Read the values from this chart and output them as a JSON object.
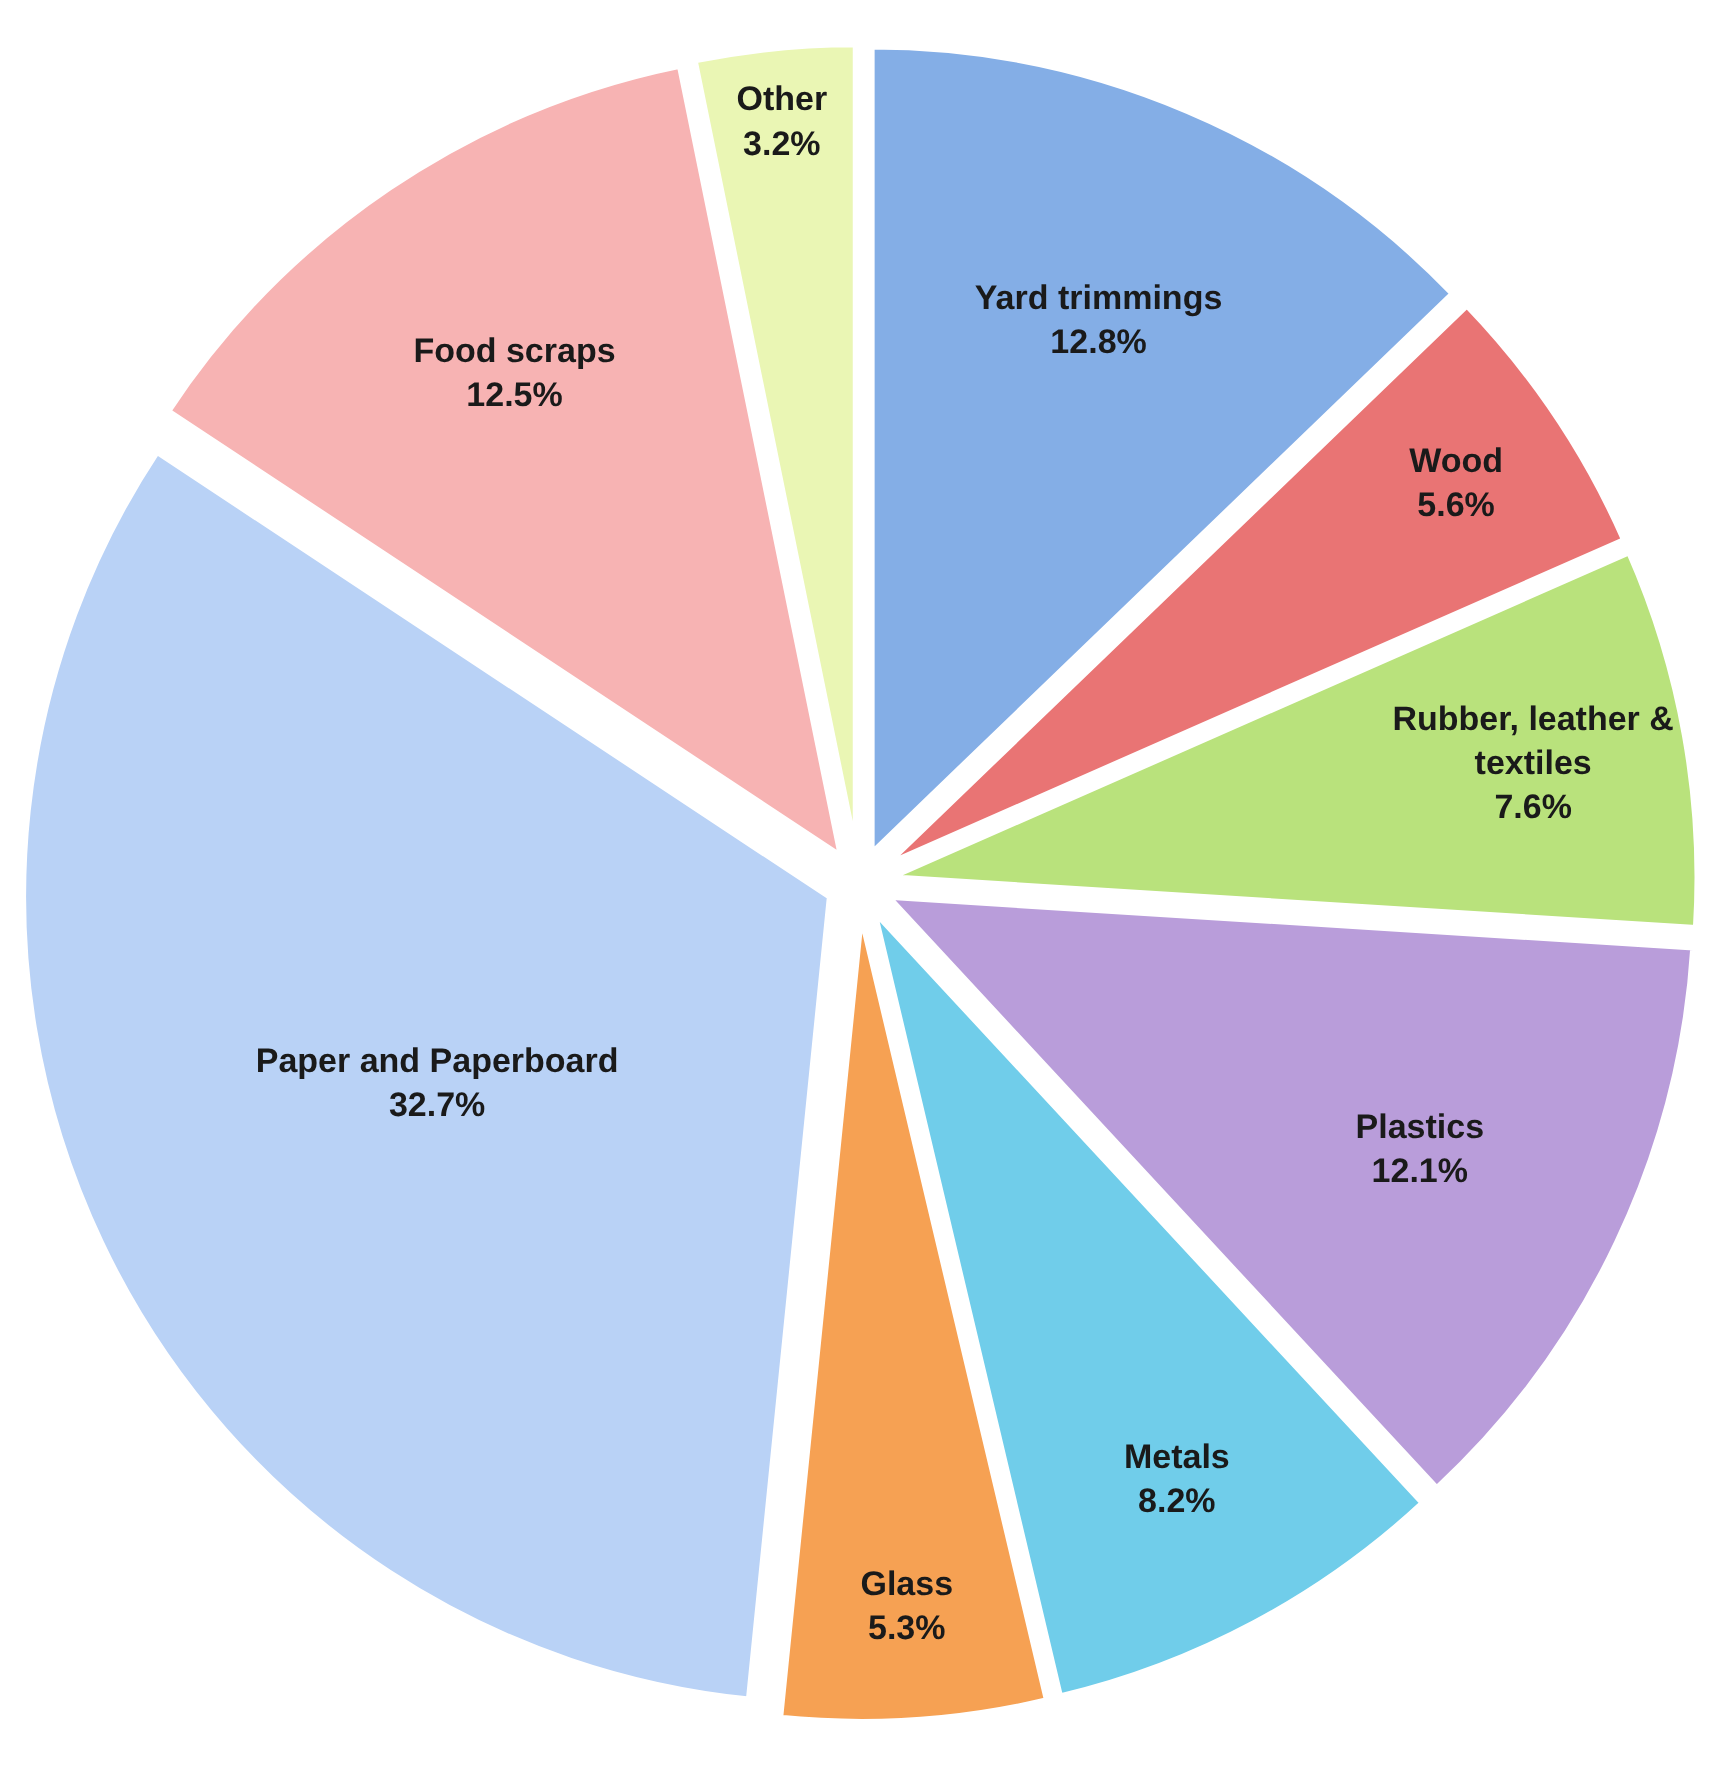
{
  "chart_data": {
    "type": "pie",
    "categories": [
      "Yard trimmings",
      "Wood",
      "Rubber, leather & textiles",
      "Plastics",
      "Metals",
      "Glass",
      "Paper and Paperboard",
      "Food scraps",
      "Other"
    ],
    "values": [
      12.8,
      5.6,
      7.6,
      12.1,
      8.2,
      5.3,
      32.7,
      12.5,
      3.2
    ],
    "value_labels": [
      "12.8%",
      "5.6%",
      "7.6%",
      "12.1%",
      "8.2%",
      "5.3%",
      "32.7%",
      "12.5%",
      "3.2%"
    ],
    "colors": [
      "#84aee6",
      "#e97474",
      "#b9e27c",
      "#b99dda",
      "#70cdea",
      "#f6a153",
      "#b9d2f6",
      "#f7b3b3",
      "#eaf6b4"
    ],
    "legend": false
  }
}
